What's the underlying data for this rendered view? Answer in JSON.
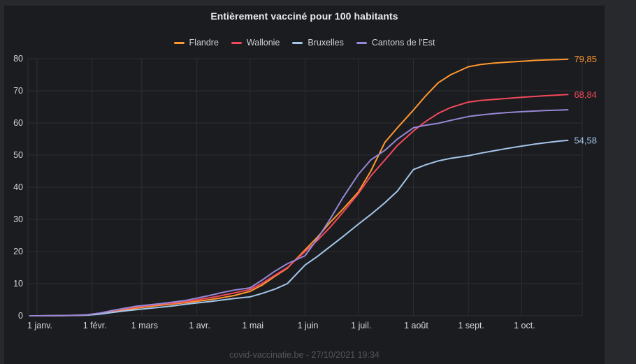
{
  "chart_data": {
    "type": "line",
    "title": "Entièrement vacciné pour 100 habitants",
    "xlabel": "",
    "ylabel": "",
    "legend_position": "top-center",
    "grid": true,
    "y_axis": {
      "min": 0,
      "max": 80,
      "ticks": [
        0,
        10,
        20,
        30,
        40,
        50,
        60,
        70,
        80
      ]
    },
    "x_axis": {
      "unit": "days-since-jan-1-2021",
      "tick_days": [
        0,
        31,
        59,
        90,
        120,
        151,
        181,
        212,
        243,
        273
      ],
      "tick_labels": [
        "1 janv.",
        "1 févr.",
        "1 mars",
        "1 avr.",
        "1 mai",
        "1 juin",
        "1 juil.",
        "1 août",
        "1 sept.",
        "1 oct."
      ]
    },
    "x_days": [
      -4,
      0,
      7,
      14,
      21,
      28,
      35,
      42,
      49,
      56,
      63,
      70,
      77,
      84,
      90,
      97,
      104,
      111,
      120,
      127,
      134,
      141,
      151,
      158,
      165,
      172,
      181,
      188,
      196,
      203,
      212,
      219,
      226,
      233,
      243,
      250,
      257,
      264,
      273,
      280,
      287,
      294,
      299
    ],
    "series": [
      {
        "name": "Flandre",
        "color": "#ff9830",
        "end_label": "79,85",
        "values": [
          0,
          0,
          0.02,
          0.05,
          0.1,
          0.2,
          0.6,
          1.2,
          1.8,
          2.4,
          2.9,
          3.3,
          3.7,
          4.1,
          4.5,
          5.0,
          5.6,
          6.3,
          7.6,
          9.6,
          12.3,
          14.8,
          20.5,
          24.5,
          29.0,
          33.0,
          38.5,
          45.0,
          54.0,
          58.5,
          64.0,
          68.5,
          72.5,
          75.0,
          77.5,
          78.2,
          78.6,
          78.9,
          79.2,
          79.45,
          79.6,
          79.75,
          79.85
        ]
      },
      {
        "name": "Wallonie",
        "color": "#f2495c",
        "end_label": "68,84",
        "values": [
          0,
          0,
          0.03,
          0.07,
          0.15,
          0.3,
          0.8,
          1.5,
          2.1,
          2.7,
          3.2,
          3.6,
          4.0,
          4.4,
          5.0,
          5.6,
          6.3,
          7.1,
          8.2,
          10.2,
          12.6,
          15.0,
          20.0,
          23.5,
          27.5,
          32.0,
          38.0,
          43.5,
          48.5,
          53.0,
          57.5,
          60.5,
          63.0,
          64.8,
          66.5,
          67.0,
          67.3,
          67.6,
          68.0,
          68.25,
          68.5,
          68.7,
          68.84
        ]
      },
      {
        "name": "Bruxelles",
        "color": "#a3c6ea",
        "end_label": "54,58",
        "values": [
          0,
          0,
          0.02,
          0.05,
          0.1,
          0.2,
          0.5,
          1.0,
          1.5,
          1.9,
          2.3,
          2.7,
          3.1,
          3.6,
          4.0,
          4.4,
          4.9,
          5.4,
          5.9,
          7.0,
          8.3,
          10.0,
          15.8,
          18.5,
          21.5,
          24.5,
          28.5,
          31.5,
          35.2,
          38.8,
          45.5,
          47.0,
          48.2,
          49.0,
          49.8,
          50.6,
          51.3,
          52.0,
          52.8,
          53.4,
          53.9,
          54.35,
          54.58
        ]
      },
      {
        "name": "Cantons de l'Est",
        "color": "#9787d6",
        "end_label": null,
        "values": [
          0,
          0,
          0.03,
          0.08,
          0.15,
          0.3,
          0.8,
          1.6,
          2.3,
          3.0,
          3.4,
          3.8,
          4.3,
          4.8,
          5.5,
          6.3,
          7.2,
          8.0,
          8.7,
          11.2,
          13.9,
          16.2,
          18.7,
          24.0,
          30.0,
          36.5,
          44.0,
          48.5,
          51.5,
          55.0,
          58.5,
          59.3,
          59.9,
          60.8,
          62.0,
          62.5,
          62.9,
          63.2,
          63.5,
          63.7,
          63.9,
          64.0,
          64.1
        ]
      }
    ]
  },
  "footer": {
    "text": "covid-vaccinatie.be - 27/10/2021 19:34"
  }
}
